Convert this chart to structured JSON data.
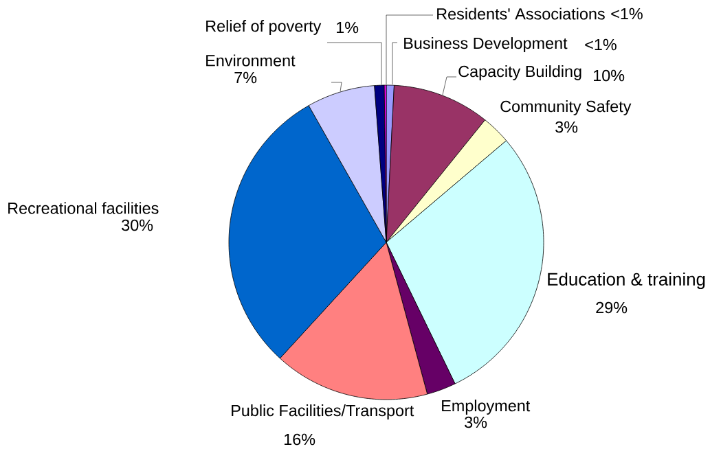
{
  "chart_data": {
    "type": "pie",
    "categories": [
      "Business Development",
      "Capacity Building",
      "Community Safety",
      "Education & training",
      "Employment",
      "Public Facilities/Transport",
      "Recreational facilities",
      "Environment",
      "Relief of poverty",
      "Residents' Associations"
    ],
    "values": [
      0.8,
      10,
      3,
      29,
      3,
      16,
      30,
      7,
      1,
      0.2
    ],
    "value_labels": [
      "<1%",
      "10%",
      "3%",
      "29%",
      "3%",
      "16%",
      "30%",
      "7%",
      "1%",
      "<1%"
    ],
    "colors": [
      "#9999ff",
      "#993366",
      "#ffffcc",
      "#ccffff",
      "#660066",
      "#ff8080",
      "#0066cc",
      "#ccccff",
      "#000080",
      "#ff00ff"
    ]
  }
}
